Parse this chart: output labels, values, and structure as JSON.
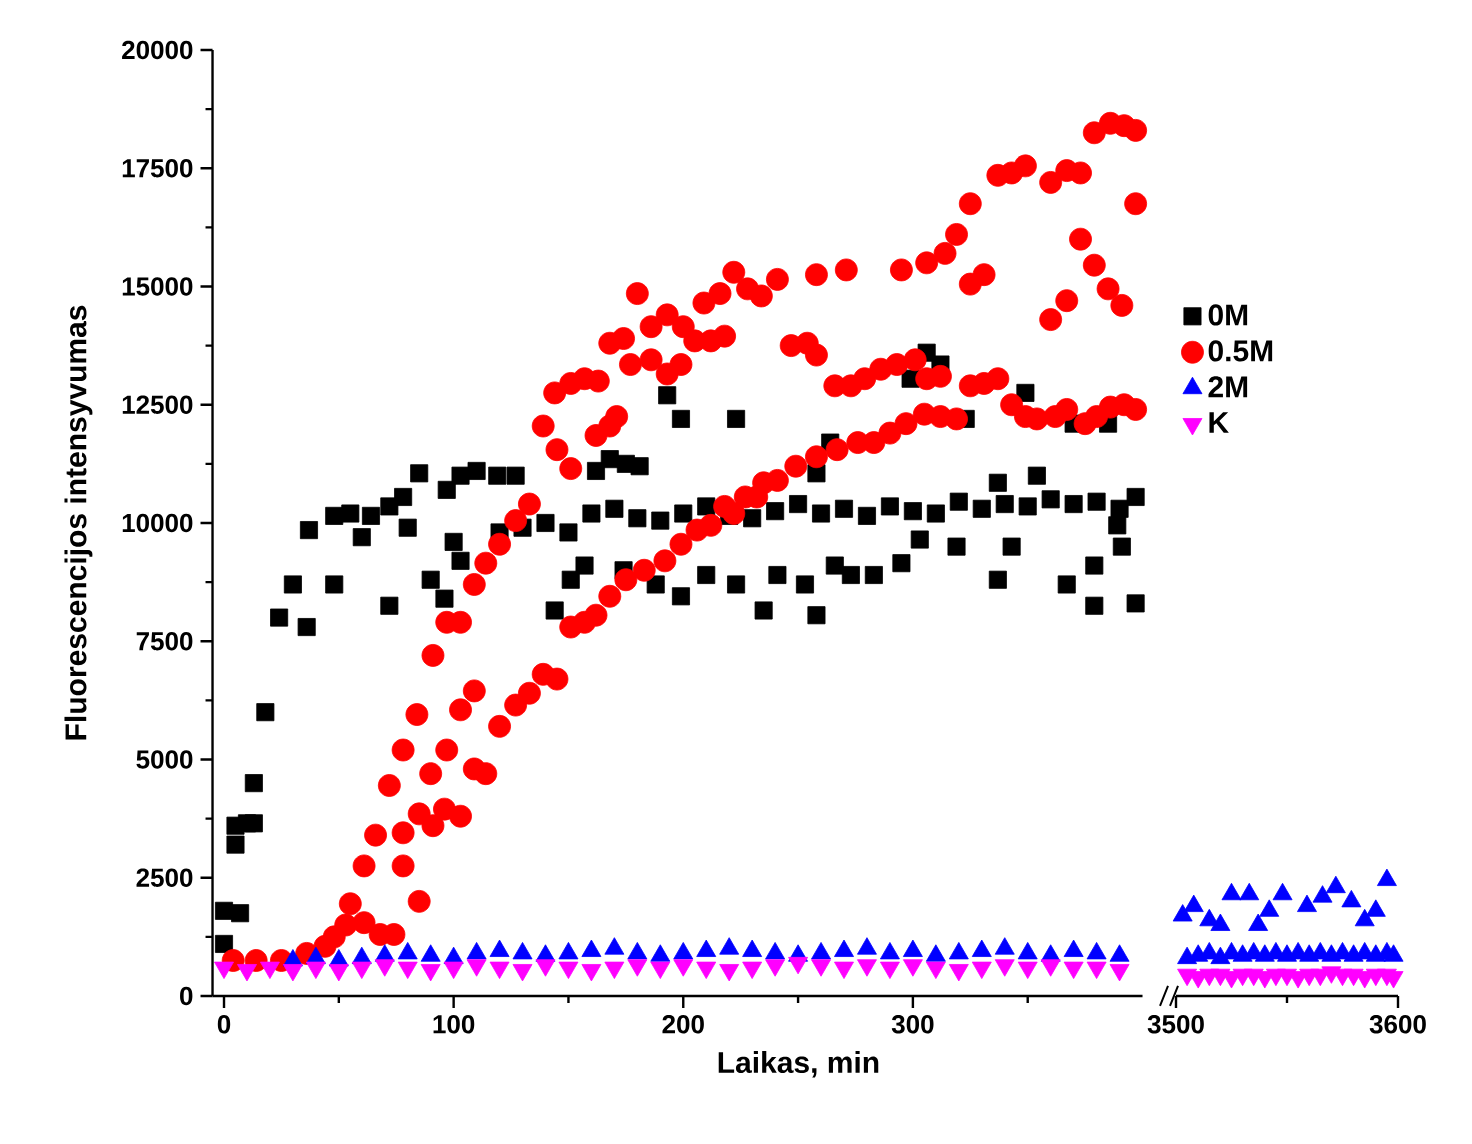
{
  "chart_data": [
    {
      "type": "scatter",
      "xlabel": "Laikas, min",
      "ylabel": "Fluorescencijos intensyvumas",
      "xlim": [
        -5,
        400
      ],
      "ylim": [
        0,
        20000
      ],
      "xticks": [
        0,
        100,
        200,
        300,
        {
          "value": 50,
          "label": null
        },
        {
          "value": 150,
          "label": null
        },
        {
          "value": 250,
          "label": null
        },
        {
          "value": 350,
          "label": null
        }
      ],
      "yticks": [
        0,
        2500,
        5000,
        7500,
        10000,
        12500,
        15000,
        17500,
        20000,
        {
          "value": 1250,
          "label": null
        },
        {
          "value": 3750,
          "label": null
        },
        {
          "value": 6250,
          "label": null
        },
        {
          "value": 8750,
          "label": null
        },
        {
          "value": 11250,
          "label": null
        },
        {
          "value": 13750,
          "label": null
        },
        {
          "value": 16250,
          "label": null
        },
        {
          "value": 18750,
          "label": null
        }
      ],
      "legend": "right",
      "grid": false,
      "series": [
        {
          "name": "0M",
          "color": "#000000",
          "marker": "square",
          "x": [
            0,
            0,
            5,
            5,
            7,
            10,
            13,
            13,
            18,
            24,
            30,
            36,
            37,
            48,
            48,
            55,
            60,
            64,
            72,
            72,
            78,
            80,
            85,
            90,
            96,
            97,
            100,
            103,
            103,
            110,
            119,
            120,
            127,
            130,
            140,
            144,
            150,
            151,
            157,
            160,
            162,
            168,
            170,
            174,
            175,
            180,
            181,
            188,
            190,
            193,
            199,
            199,
            200,
            210,
            210,
            220,
            223,
            223,
            230,
            235,
            240,
            241,
            250,
            253,
            258,
            258,
            260,
            264,
            266,
            270,
            273,
            280,
            283,
            290,
            295,
            299,
            300,
            303,
            306,
            310,
            312,
            319,
            320,
            323,
            330,
            337,
            337,
            340,
            343,
            349,
            350,
            354,
            360,
            367,
            370,
            370,
            379,
            379,
            380,
            385,
            389,
            390,
            391,
            397,
            397
          ],
          "values": [
            1100,
            1800,
            3200,
            3600,
            1750,
            3650,
            4500,
            3650,
            6000,
            8000,
            8700,
            7800,
            9850,
            8700,
            10150,
            10200,
            9700,
            10150,
            8250,
            10350,
            10550,
            9900,
            11050,
            8800,
            8400,
            10700,
            9600,
            9200,
            11000,
            11100,
            11000,
            9800,
            11000,
            9900,
            10000,
            8150,
            9800,
            8800,
            9100,
            10200,
            11100,
            11350,
            10300,
            9000,
            11250,
            10100,
            11200,
            8700,
            10050,
            12700,
            12200,
            8450,
            10200,
            10350,
            8900,
            10150,
            12200,
            8700,
            10100,
            8150,
            10250,
            8900,
            10400,
            8700,
            11050,
            8050,
            10200,
            11700,
            9100,
            10300,
            8900,
            10150,
            8900,
            10350,
            9150,
            13050,
            10250,
            9650,
            13600,
            10200,
            13350,
            9500,
            10450,
            12200,
            10300,
            10850,
            8800,
            10400,
            9500,
            12750,
            10350,
            11000,
            10500,
            8700,
            10400,
            12100,
            8250,
            9100,
            10450,
            12100,
            9950,
            10300,
            9500,
            10550,
            8300
          ]
        },
        {
          "name": "0.5M",
          "color": "#ff0000",
          "marker": "circle",
          "x": [
            4,
            14,
            25,
            36,
            44,
            48,
            53,
            55,
            61,
            61,
            66,
            68,
            72,
            74,
            78,
            78,
            78,
            84,
            85,
            85,
            90,
            91,
            91,
            96,
            97,
            97,
            103,
            103,
            103,
            109,
            109,
            109,
            114,
            114,
            120,
            120,
            127,
            127,
            133,
            133,
            139,
            139,
            144,
            145,
            145,
            151,
            151,
            151,
            157,
            157,
            162,
            162,
            163,
            168,
            168,
            168,
            171,
            174,
            175,
            177,
            180,
            183,
            186,
            186,
            192,
            193,
            193,
            199,
            199,
            200,
            205,
            206,
            209,
            212,
            212,
            216,
            218,
            218,
            222,
            222,
            227,
            228,
            232,
            234,
            235,
            241,
            241,
            247,
            249,
            254,
            258,
            258,
            258,
            266,
            267,
            271,
            273,
            276,
            279,
            283,
            286,
            290,
            293,
            295,
            297,
            301,
            305,
            306,
            306,
            312,
            312,
            314,
            319,
            319,
            325,
            325,
            325,
            331,
            331,
            337,
            337,
            343,
            343,
            349,
            349,
            354,
            360,
            360,
            362,
            367,
            367,
            367,
            373,
            373,
            375,
            379,
            379,
            380,
            385,
            386,
            386,
            391,
            392,
            392,
            397,
            397,
            397
          ],
          "values": [
            750,
            750,
            750,
            900,
            1050,
            1250,
            1500,
            1950,
            1550,
            2750,
            3400,
            1300,
            4450,
            1300,
            5200,
            2750,
            3450,
            5950,
            2000,
            3850,
            4700,
            7200,
            3600,
            3950,
            7900,
            5200,
            7900,
            3800,
            6050,
            8700,
            4800,
            6450,
            9150,
            4700,
            9550,
            5700,
            10050,
            6150,
            10400,
            6400,
            12050,
            6800,
            12750,
            6700,
            11550,
            12950,
            7800,
            11150,
            13050,
            7900,
            8050,
            11850,
            13000,
            13800,
            8450,
            12050,
            12250,
            13900,
            8800,
            13350,
            14850,
            9000,
            14150,
            13450,
            9200,
            14400,
            13150,
            9550,
            13350,
            14150,
            13850,
            9850,
            14650,
            9950,
            13850,
            14850,
            10350,
            13950,
            15300,
            10200,
            10550,
            14950,
            10550,
            14800,
            10850,
            15150,
            10900,
            13750,
            11200,
            13800,
            15250,
            11400,
            13550,
            12900,
            11550,
            15350,
            12900,
            11700,
            13050,
            11700,
            13250,
            11900,
            13350,
            15350,
            12100,
            13450,
            12300,
            15500,
            13050,
            12250,
            13100,
            15700,
            16100,
            12200,
            16750,
            15050,
            12900,
            15250,
            12950,
            17350,
            13050,
            17400,
            12500,
            17550,
            12250,
            12200,
            17200,
            14300,
            12250,
            17450,
            14700,
            12400,
            17400,
            16000,
            12100,
            18250,
            15450,
            12250,
            14950,
            18450,
            12450,
            14600,
            18400,
            12500,
            18300,
            16750,
            12400
          ]
        },
        {
          "name": "2M",
          "color": "#0000ff",
          "marker": "triangle",
          "x": [
            30,
            40,
            50,
            60,
            70,
            80,
            90,
            100,
            110,
            120,
            130,
            140,
            150,
            160,
            170,
            180,
            190,
            200,
            210,
            220,
            230,
            240,
            250,
            260,
            270,
            280,
            290,
            300,
            310,
            320,
            330,
            340,
            350,
            360,
            370,
            380,
            390
          ],
          "values": [
            750,
            800,
            750,
            800,
            850,
            900,
            850,
            800,
            900,
            950,
            900,
            850,
            900,
            950,
            1000,
            900,
            850,
            900,
            950,
            1000,
            950,
            900,
            850,
            900,
            950,
            1000,
            900,
            950,
            850,
            900,
            950,
            1000,
            900,
            850,
            950,
            900,
            850
          ]
        },
        {
          "name": "K",
          "color": "#ff00ff",
          "marker": "triangle-down",
          "x": [
            0,
            10,
            20,
            30,
            40,
            50,
            60,
            70,
            80,
            90,
            100,
            110,
            120,
            130,
            140,
            150,
            160,
            170,
            180,
            190,
            200,
            210,
            220,
            230,
            240,
            250,
            260,
            270,
            280,
            290,
            300,
            310,
            320,
            330,
            340,
            350,
            360,
            370,
            380,
            390
          ],
          "values": [
            600,
            550,
            600,
            550,
            600,
            550,
            600,
            650,
            600,
            550,
            600,
            650,
            600,
            550,
            650,
            600,
            550,
            600,
            650,
            600,
            650,
            600,
            550,
            600,
            650,
            700,
            650,
            600,
            650,
            600,
            650,
            600,
            550,
            600,
            650,
            600,
            650,
            600,
            600,
            550
          ]
        }
      ]
    },
    {
      "type": "scatter",
      "xlim": [
        3500,
        3600
      ],
      "ylim": [
        0,
        20000
      ],
      "xticks": [
        3500,
        3600,
        {
          "value": 3550,
          "label": null
        }
      ],
      "tick_labels": "x",
      "grid": false,
      "series": [
        {
          "color": "#0000ff",
          "marker": "triangle",
          "x": [
            3503,
            3505,
            3508,
            3510,
            3515,
            3515,
            3520,
            3520,
            3525,
            3525,
            3530,
            3533,
            3535,
            3537,
            3540,
            3542,
            3545,
            3548,
            3550,
            3555,
            3559,
            3560,
            3565,
            3566,
            3570,
            3572,
            3575,
            3579,
            3580,
            3585,
            3585,
            3590,
            3590,
            3595,
            3595,
            3598
          ],
          "values": [
            1700,
            800,
            1900,
            850,
            900,
            1600,
            800,
            1500,
            900,
            2150,
            850,
            2150,
            900,
            1500,
            850,
            1800,
            900,
            2150,
            850,
            900,
            1900,
            850,
            900,
            2100,
            850,
            2300,
            900,
            2000,
            850,
            900,
            1600,
            850,
            1800,
            900,
            2450,
            850
          ]
        },
        {
          "color": "#ff00ff",
          "marker": "triangle-down",
          "x": [
            3505,
            3510,
            3515,
            3520,
            3525,
            3530,
            3535,
            3540,
            3545,
            3550,
            3555,
            3560,
            3565,
            3570,
            3575,
            3580,
            3585,
            3590,
            3595,
            3598
          ],
          "values": [
            450,
            400,
            450,
            450,
            400,
            450,
            450,
            400,
            450,
            450,
            400,
            450,
            450,
            500,
            450,
            450,
            400,
            450,
            450,
            400
          ]
        }
      ]
    }
  ]
}
